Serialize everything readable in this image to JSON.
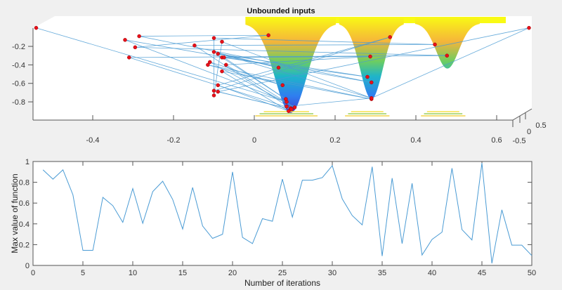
{
  "chart_data": [
    {
      "type": "surface-scatter",
      "title": "Unbounded inputs",
      "xlabel": "",
      "ylabel": "",
      "xlim": [
        -0.55,
        0.68
      ],
      "zlim": [
        -0.95,
        0.0
      ],
      "x_ticks": [
        "-0.4",
        "-0.2",
        "0",
        "0.2",
        "0.4",
        "0.6"
      ],
      "x_tick_values": [
        -0.4,
        -0.2,
        0,
        0.2,
        0.4,
        0.6
      ],
      "z_ticks": [
        "-0.2",
        "-0.4",
        "-0.6",
        "-0.8"
      ],
      "z_tick_values": [
        -0.2,
        -0.4,
        -0.6,
        -0.8
      ],
      "depth_ticks": [
        "-0.5",
        "0",
        "0.5"
      ],
      "wells": [
        {
          "center": 0.09,
          "halfwidth": 0.07,
          "min": -0.92
        },
        {
          "center": 0.29,
          "halfwidth": 0.05,
          "min": -0.77
        },
        {
          "center": 0.478,
          "halfwidth": 0.05,
          "min": -0.44
        }
      ],
      "points": [
        [
          -0.54,
          0.0
        ],
        [
          0.08,
          -0.8
        ],
        [
          -0.32,
          -0.13
        ],
        [
          0.29,
          -0.59
        ],
        [
          -0.285,
          -0.09
        ],
        [
          0.035,
          -0.08
        ],
        [
          -0.295,
          -0.21
        ],
        [
          0.477,
          -0.3
        ],
        [
          -0.31,
          -0.32
        ],
        [
          0.09,
          -0.87
        ],
        [
          -0.148,
          -0.19
        ],
        [
          0.447,
          -0.18
        ],
        [
          -0.1,
          -0.11
        ],
        [
          -0.1,
          -0.73
        ],
        [
          -0.08,
          -0.15
        ],
        [
          0.29,
          -0.76
        ],
        [
          -0.1,
          -0.26
        ],
        [
          0.06,
          -0.43
        ],
        [
          -0.09,
          -0.28
        ],
        [
          0.28,
          -0.53
        ],
        [
          -0.08,
          -0.32
        ],
        [
          0.078,
          -0.77
        ],
        [
          -0.075,
          -0.32
        ],
        [
          0.287,
          -0.31
        ],
        [
          -0.07,
          -0.4
        ],
        [
          0.1,
          -0.86
        ],
        [
          -0.11,
          -0.37
        ],
        [
          0.07,
          -0.62
        ],
        [
          -0.115,
          -0.4
        ],
        [
          0.29,
          -0.77
        ],
        [
          -0.08,
          -0.47
        ],
        [
          0.085,
          -0.9
        ],
        [
          -0.09,
          -0.62
        ],
        [
          0.336,
          -0.1
        ],
        [
          -0.1,
          -0.68
        ],
        [
          0.092,
          -0.88
        ],
        [
          -0.09,
          -0.69
        ],
        [
          0.68,
          0.0
        ],
        [
          0.29,
          -0.76
        ],
        [
          0.08,
          -0.85
        ]
      ],
      "colors": {
        "line": "#4a9bd4",
        "marker": "#e8101a"
      }
    },
    {
      "type": "line",
      "title": "",
      "xlabel": "Number of iterations",
      "ylabel": "Max value of function",
      "xlim": [
        0,
        50
      ],
      "ylim": [
        0,
        1
      ],
      "x_ticks": [
        "0",
        "5",
        "10",
        "15",
        "20",
        "25",
        "30",
        "35",
        "40",
        "45",
        "50"
      ],
      "y_ticks": [
        "0",
        "0.2",
        "0.4",
        "0.6",
        "0.8",
        "1"
      ],
      "x": [
        1,
        2,
        3,
        4,
        5,
        6,
        7,
        8,
        9,
        10,
        11,
        12,
        13,
        14,
        15,
        16,
        17,
        18,
        19,
        20,
        21,
        22,
        23,
        24,
        25,
        26,
        27,
        28,
        29,
        30,
        31,
        32,
        33,
        34,
        35,
        36,
        37,
        38,
        39,
        40,
        41,
        42,
        43,
        44,
        45,
        46,
        47,
        48,
        49,
        50
      ],
      "values": [
        0.92,
        0.83,
        0.92,
        0.68,
        0.145,
        0.145,
        0.655,
        0.575,
        0.415,
        0.74,
        0.405,
        0.71,
        0.81,
        0.635,
        0.35,
        0.75,
        0.38,
        0.26,
        0.3,
        0.9,
        0.27,
        0.21,
        0.45,
        0.425,
        0.83,
        0.465,
        0.82,
        0.82,
        0.845,
        0.96,
        0.64,
        0.48,
        0.39,
        0.95,
        0.09,
        0.84,
        0.21,
        0.79,
        0.1,
        0.25,
        0.32,
        0.935,
        0.345,
        0.245,
        0.985,
        0.02,
        0.535,
        0.195,
        0.195,
        0.095
      ],
      "grid": false,
      "colors": {
        "line": "#4a9bd4"
      }
    }
  ]
}
